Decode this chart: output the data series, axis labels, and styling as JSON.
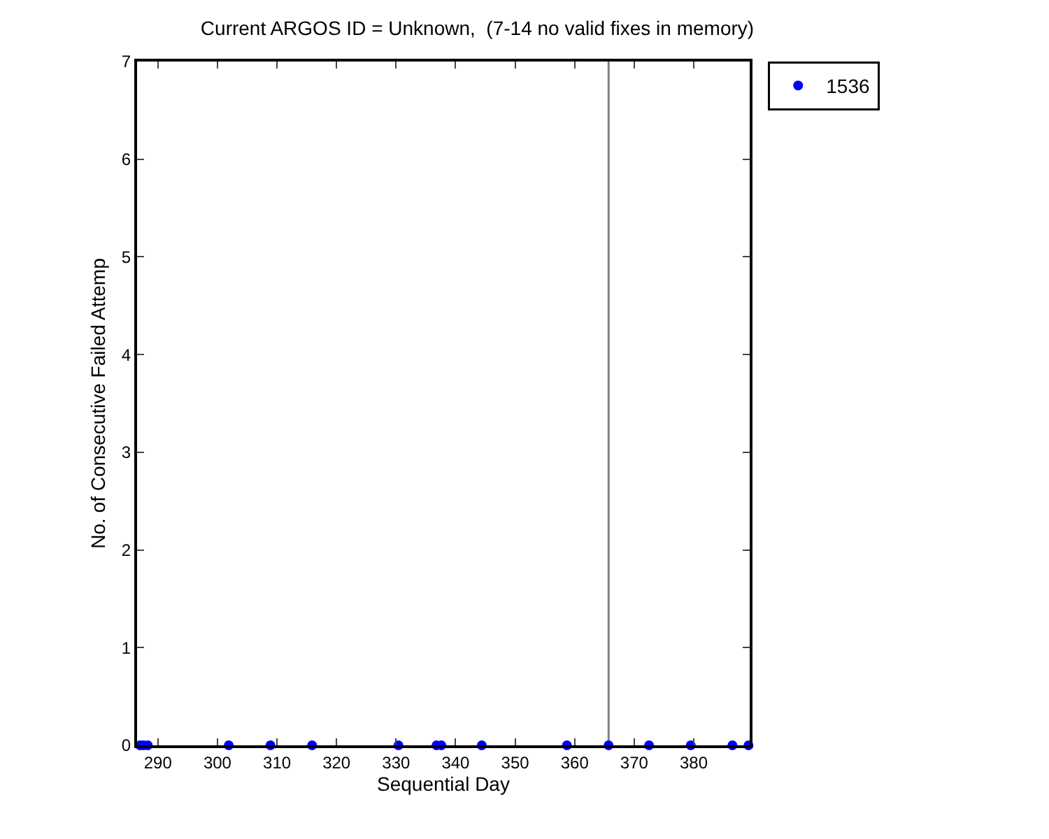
{
  "chart_data": {
    "type": "scatter",
    "title": "Current ARGOS ID = Unknown,  (7-14 no valid fixes in memory)",
    "xlabel": "Sequential Day",
    "ylabel": "No. of Consecutive Failed Attemp",
    "x": [
      287,
      287.6,
      288.3,
      301.9,
      308.9,
      315.9,
      330.4,
      336.8,
      337.6,
      344.4,
      358.7,
      365.7,
      372.5,
      379.5,
      386.5,
      389.2
    ],
    "series": [
      {
        "name": "1536",
        "color": "#0000ff",
        "values": [
          0,
          0,
          0,
          0,
          0,
          0,
          0,
          0,
          0,
          0,
          0,
          0,
          0,
          0,
          0,
          0
        ]
      }
    ],
    "xlim": [
      286.5,
      389.4
    ],
    "xticks": [
      290,
      300,
      310,
      320,
      330,
      340,
      350,
      360,
      370,
      380
    ],
    "ylim": [
      0,
      7
    ],
    "yticks": [
      0,
      1,
      2,
      3,
      4,
      5,
      6,
      7
    ],
    "ref_lines": [
      {
        "axis": "x",
        "value": 365.7,
        "color": "#808080"
      }
    ],
    "marker": "circle",
    "grid": false,
    "legend": "top right"
  }
}
